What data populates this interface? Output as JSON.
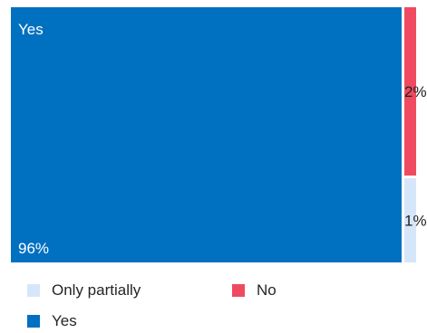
{
  "chart_data": {
    "type": "treemap",
    "title": "",
    "items": [
      {
        "label": "Yes",
        "value": 96,
        "display": "96%",
        "color": "#0070c0"
      },
      {
        "label": "No",
        "value": 2,
        "display": "2%",
        "color": "#f04a60"
      },
      {
        "label": "Only partially",
        "value": 1,
        "display": "1%",
        "color": "#d6e6fa"
      }
    ],
    "legend": [
      {
        "label": "Only partially",
        "color": "#d6e6fa"
      },
      {
        "label": "No",
        "color": "#f04a60"
      },
      {
        "label": "Yes",
        "color": "#0070c0"
      }
    ],
    "legend_position": "bottom"
  }
}
